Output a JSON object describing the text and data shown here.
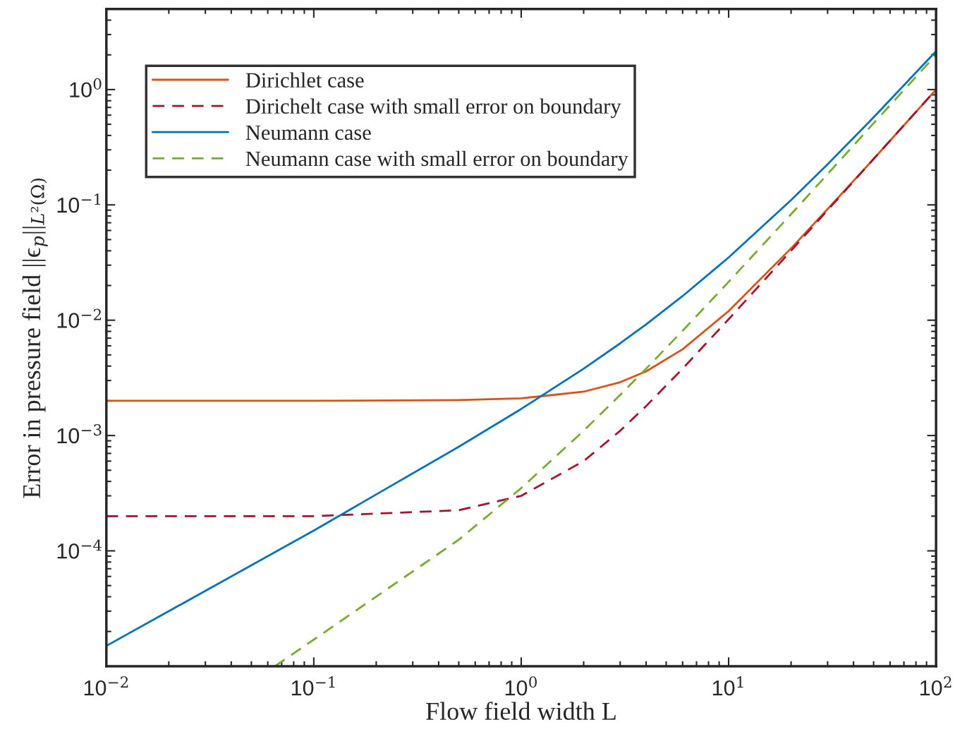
{
  "chart_data": {
    "type": "line",
    "xlabel": "Flow field width L",
    "ylabel": "Error in pressure field ||ϵ$_{p}$||$_{L²(Ω)}$",
    "log": "xy",
    "grid": false,
    "legend": "top left",
    "xlim": [
      0.01,
      100
    ],
    "ylim": [
      1e-05,
      5
    ],
    "xticks": [
      {
        "value": 0.01,
        "label": "10$^{−2}$"
      },
      {
        "value": 0.1,
        "label": "10$^{−1}$"
      },
      {
        "value": 1,
        "label": "10$^{0}$"
      },
      {
        "value": 10,
        "label": "10$^{1}$"
      },
      {
        "value": 100,
        "label": "10$^{2}$"
      }
    ],
    "yticks": [
      {
        "value": 0.0001,
        "label": "10$^{−4}$"
      },
      {
        "value": 0.001,
        "label": "10$^{−3}$"
      },
      {
        "value": 0.01,
        "label": "10$^{−2}$"
      },
      {
        "value": 0.1,
        "label": "10$^{−1}$"
      },
      {
        "value": 1,
        "label": "10$^{0}$"
      }
    ],
    "x": [
      0.01,
      0.1,
      0.5,
      1,
      2,
      3,
      4,
      6,
      10,
      20,
      30,
      50,
      100
    ],
    "series": [
      {
        "name": "Dirichlet case",
        "color": "#d95319",
        "line_style": "solid",
        "values": [
          0.002,
          0.002,
          0.00203,
          0.0021,
          0.0024,
          0.0029,
          0.0036,
          0.0056,
          0.012,
          0.042,
          0.092,
          0.25,
          1.0
        ]
      },
      {
        "name": "Dirichelt case with small error on boundary",
        "color": "#a2142f",
        "line_style": "dashed",
        "values": [
          0.0002,
          0.0002,
          0.000225,
          0.0003,
          0.0006,
          0.0011,
          0.0018,
          0.0038,
          0.0102,
          0.04,
          0.09,
          0.25,
          1.0
        ]
      },
      {
        "name": "Neumann case",
        "color": "#0072bd",
        "line_style": "solid",
        "values": [
          1.5e-05,
          0.00015,
          0.0008,
          0.0017,
          0.0038,
          0.0063,
          0.0092,
          0.0162,
          0.035,
          0.11,
          0.225,
          0.575,
          2.15
        ]
      },
      {
        "name": "Neumann case with small error on boundary",
        "color": "#77ac30",
        "line_style": "dashed",
        "x": [
          0.065,
          0.1,
          0.5,
          1,
          2,
          3,
          4,
          6,
          10,
          20,
          30,
          50,
          100
        ],
        "values": [
          1e-05,
          1.7e-05,
          0.000125,
          0.00035,
          0.0011,
          0.00225,
          0.0038,
          0.0081,
          0.0215,
          0.083,
          0.185,
          0.51,
          2.0
        ]
      }
    ]
  }
}
